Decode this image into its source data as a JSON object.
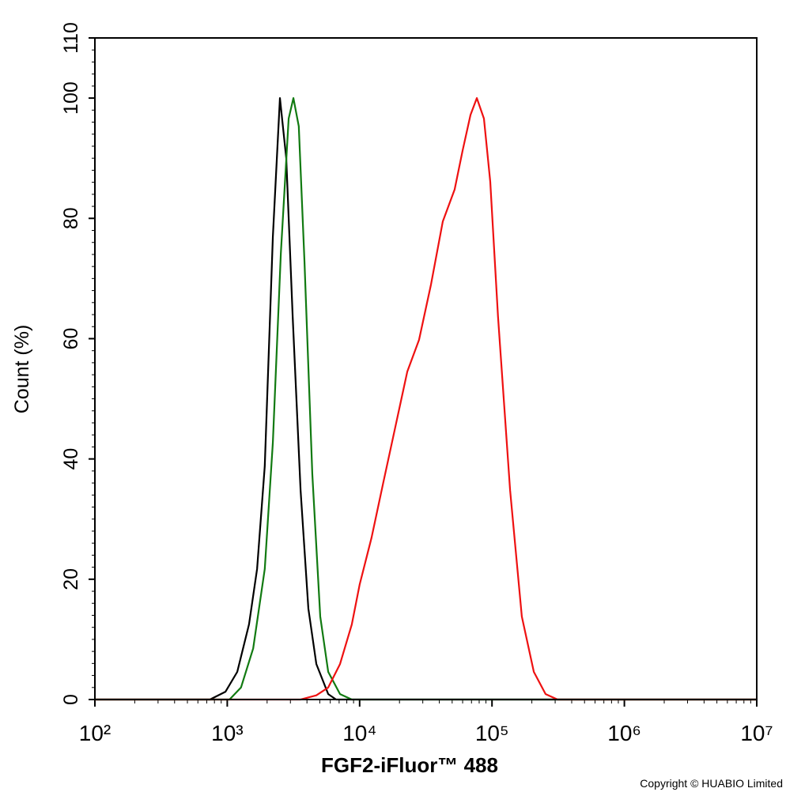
{
  "chart_data": {
    "type": "line",
    "xlabel": "FGF2-iFluor™ 488",
    "ylabel": "Count  (%)",
    "footer": "Copyright © HUABIO Limited",
    "xscale": "log",
    "xlim": [
      100,
      10000000
    ],
    "ylim": [
      0,
      110
    ],
    "xticks": [
      {
        "value": 100,
        "label": "10²"
      },
      {
        "value": 1000,
        "label": "10³"
      },
      {
        "value": 10000,
        "label": "10⁴"
      },
      {
        "value": 100000,
        "label": "10⁵"
      },
      {
        "value": 1000000,
        "label": "10⁶"
      },
      {
        "value": 10000000,
        "label": "10⁷"
      }
    ],
    "yticks": [
      0,
      20,
      40,
      60,
      80,
      100,
      110
    ],
    "series": [
      {
        "color": "#000000",
        "x": [
          100,
          740,
          970,
          1190,
          1460,
          1680,
          1920,
          2210,
          2500,
          2790,
          3120,
          3580,
          4100,
          4710,
          5790,
          6640,
          10000000
        ],
        "values": [
          0,
          0,
          1.3,
          4.6,
          12.5,
          21.7,
          38.8,
          76.9,
          100,
          90,
          63.7,
          34.8,
          15.1,
          5.9,
          0.9,
          0,
          0
        ]
      },
      {
        "color": "#117a11",
        "x": [
          100,
          1040,
          1270,
          1570,
          1920,
          2210,
          2540,
          2910,
          3160,
          3470,
          3830,
          4390,
          5040,
          5790,
          7110,
          8730,
          10000000
        ],
        "values": [
          0,
          0,
          2,
          8.5,
          21.7,
          42.7,
          74.2,
          96.6,
          100,
          95.3,
          72.9,
          37.5,
          13.8,
          4.6,
          0.9,
          0,
          0
        ]
      },
      {
        "color": "#ee1111",
        "x": [
          100,
          3580,
          4710,
          5790,
          7110,
          8730,
          10000,
          12300,
          15100,
          18600,
          22900,
          28100,
          34600,
          42500,
          52200,
          60000,
          68800,
          76800,
          86900,
          97000,
          111000,
          137000,
          168000,
          207000,
          254000,
          313000,
          10000000
        ],
        "values": [
          0,
          0,
          0.7,
          2,
          5.9,
          12.5,
          19.1,
          26.9,
          36.1,
          45.3,
          54.5,
          59.8,
          69,
          79.5,
          84.8,
          91.3,
          97.2,
          100,
          96.6,
          86.1,
          63.7,
          34.8,
          13.8,
          4.6,
          0.9,
          0,
          0
        ]
      }
    ]
  }
}
